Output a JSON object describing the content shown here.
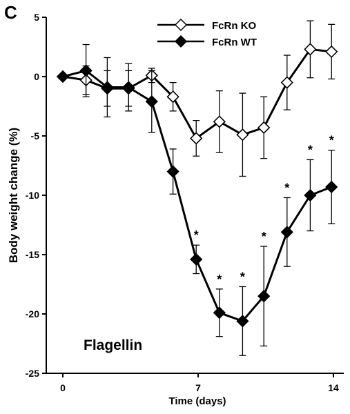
{
  "panel_label": "C",
  "chart_data": {
    "type": "line",
    "xlabel": "Time (days)",
    "ylabel": "Body weight change (%)",
    "annotation": "Flagellin",
    "xlim": [
      0,
      14
    ],
    "ylim": [
      -25,
      5
    ],
    "x_ticks": [
      0,
      7,
      14
    ],
    "y_ticks": [
      5,
      0,
      -5,
      -10,
      -15,
      -20,
      -25
    ],
    "legend_position": "top-center",
    "x": [
      0,
      1.2,
      2.3,
      3.4,
      4.6,
      5.7,
      6.9,
      8.1,
      9.3,
      10.4,
      11.6,
      12.8,
      13.9
    ],
    "significance_marker": "*",
    "series": [
      {
        "name": "FcRn KO",
        "marker": "open-diamond",
        "values": [
          0,
          -0.3,
          -1.0,
          -1.0,
          0.1,
          -1.7,
          -5.2,
          -3.8,
          -4.9,
          -4.3,
          -0.5,
          2.3,
          2.1
        ],
        "error": [
          0,
          1.2,
          1.5,
          1.5,
          0.6,
          1.2,
          1.5,
          2.6,
          3.5,
          2.6,
          2.3,
          2.4,
          2.3
        ]
      },
      {
        "name": "FcRn WT",
        "marker": "filled-diamond",
        "values": [
          0,
          0.5,
          -0.9,
          -0.9,
          -2.1,
          -8.0,
          -15.4,
          -19.9,
          -20.6,
          -18.5,
          -13.1,
          -10.0,
          -9.3
        ],
        "error": [
          0,
          2.2,
          2.5,
          2.0,
          2.6,
          1.9,
          1.2,
          2.0,
          2.9,
          4.2,
          2.9,
          3.0,
          3.1
        ],
        "significant": [
          false,
          false,
          false,
          false,
          false,
          false,
          true,
          true,
          true,
          true,
          true,
          true,
          true
        ]
      }
    ]
  }
}
